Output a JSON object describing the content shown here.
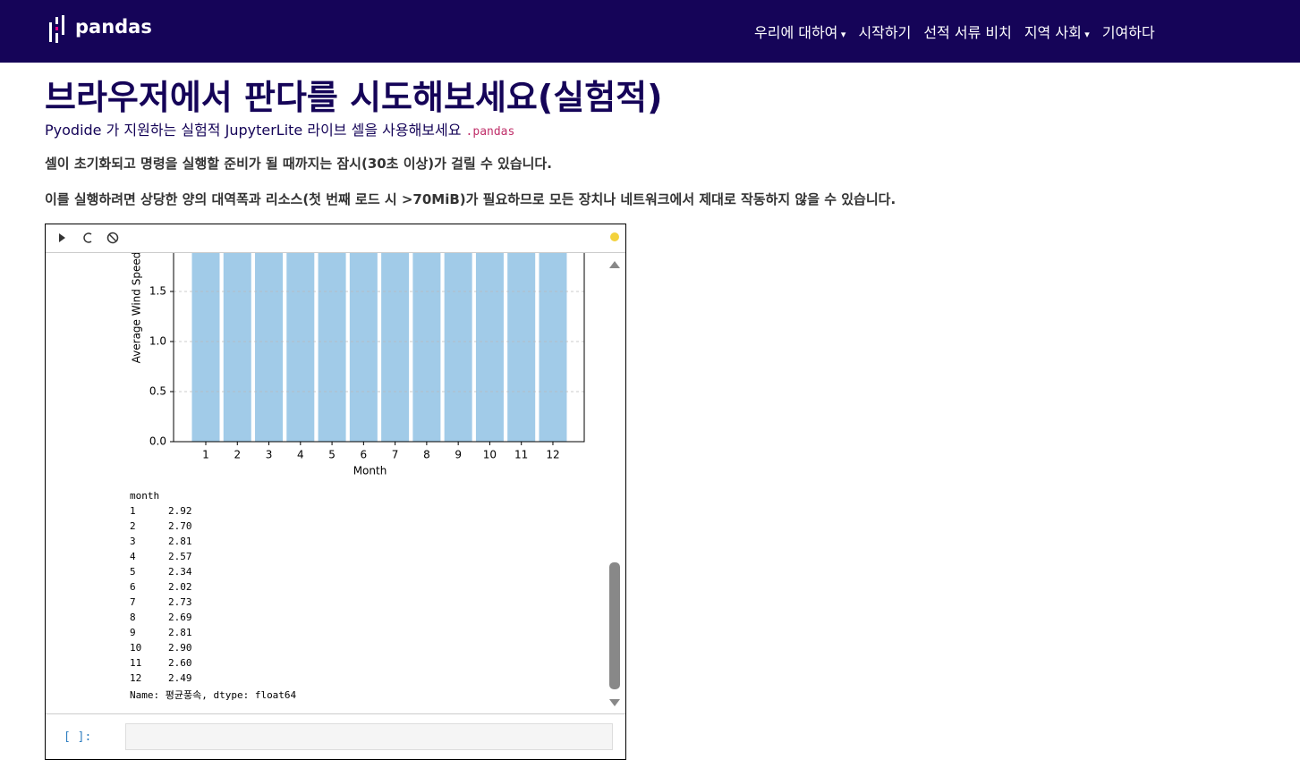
{
  "nav": {
    "brand": "pandas",
    "items": [
      "우리에 대하여",
      "시작하기",
      "선적 서류 비치",
      "지역 사회",
      "기여하다"
    ]
  },
  "heading": "브라우저에서 판다를 시도해보세요(실험적)",
  "intro": {
    "text": "Pyodide 가 지원하는 실험적 JupyterLite 라이브 셀을 사용해보세요",
    "code": ".pandas"
  },
  "notes": [
    "셀이 초기화되고 명령을 실행할 준비가 될 때까지는 잠시(30초 이상)가 걸릴 수 있습니다.",
    "이를 실행하려면 상당한 양의 대역폭과 리소스(첫 번째 로드 시 >70MiB)가 필요하므로 모든 장치나 네트워크에서 제대로 작동하지 않을 수 있습니다."
  ],
  "notebook": {
    "prompt": "[ ]:",
    "output": {
      "index_name": "month",
      "footer": "Name: 평균풍속, dtype: float64"
    }
  },
  "chart_data": {
    "type": "bar",
    "xlabel": "Month",
    "ylabel": "Average Wind Speed",
    "categories": [
      "1",
      "2",
      "3",
      "4",
      "5",
      "6",
      "7",
      "8",
      "9",
      "10",
      "11",
      "12"
    ],
    "values": [
      2.92,
      2.7,
      2.81,
      2.57,
      2.34,
      2.02,
      2.73,
      2.69,
      2.81,
      2.9,
      2.6,
      2.49
    ],
    "value_labels": [
      "2.92",
      "2.70",
      "2.81",
      "2.57",
      "2.34",
      "2.02",
      "2.73",
      "2.69",
      "2.81",
      "2.90",
      "2.60",
      "2.49"
    ],
    "color": "#a1cbe8",
    "ylim": [
      0,
      3.1
    ],
    "yticks": [
      {
        "value": 0,
        "label": "0.0"
      },
      {
        "value": 0.5,
        "label": "0.5"
      },
      {
        "value": 1,
        "label": "1.0"
      },
      {
        "value": 1.5,
        "label": "1.5"
      }
    ],
    "grid": true
  }
}
